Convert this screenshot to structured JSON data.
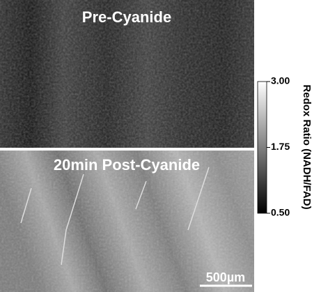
{
  "panels": [
    {
      "label": "Pre-Cyanide"
    },
    {
      "label": "20min Post-Cyanide"
    }
  ],
  "colorbar": {
    "label": "Redox Ratio (NADH/FAD)",
    "lim": [
      0.5,
      3
    ],
    "ticks": [
      {
        "value": 3,
        "label": "3.00"
      },
      {
        "value": 1.75,
        "label": "1.75"
      },
      {
        "value": 0.5,
        "label": "0.50"
      }
    ]
  },
  "scale_bar": {
    "label": "500µm"
  }
}
